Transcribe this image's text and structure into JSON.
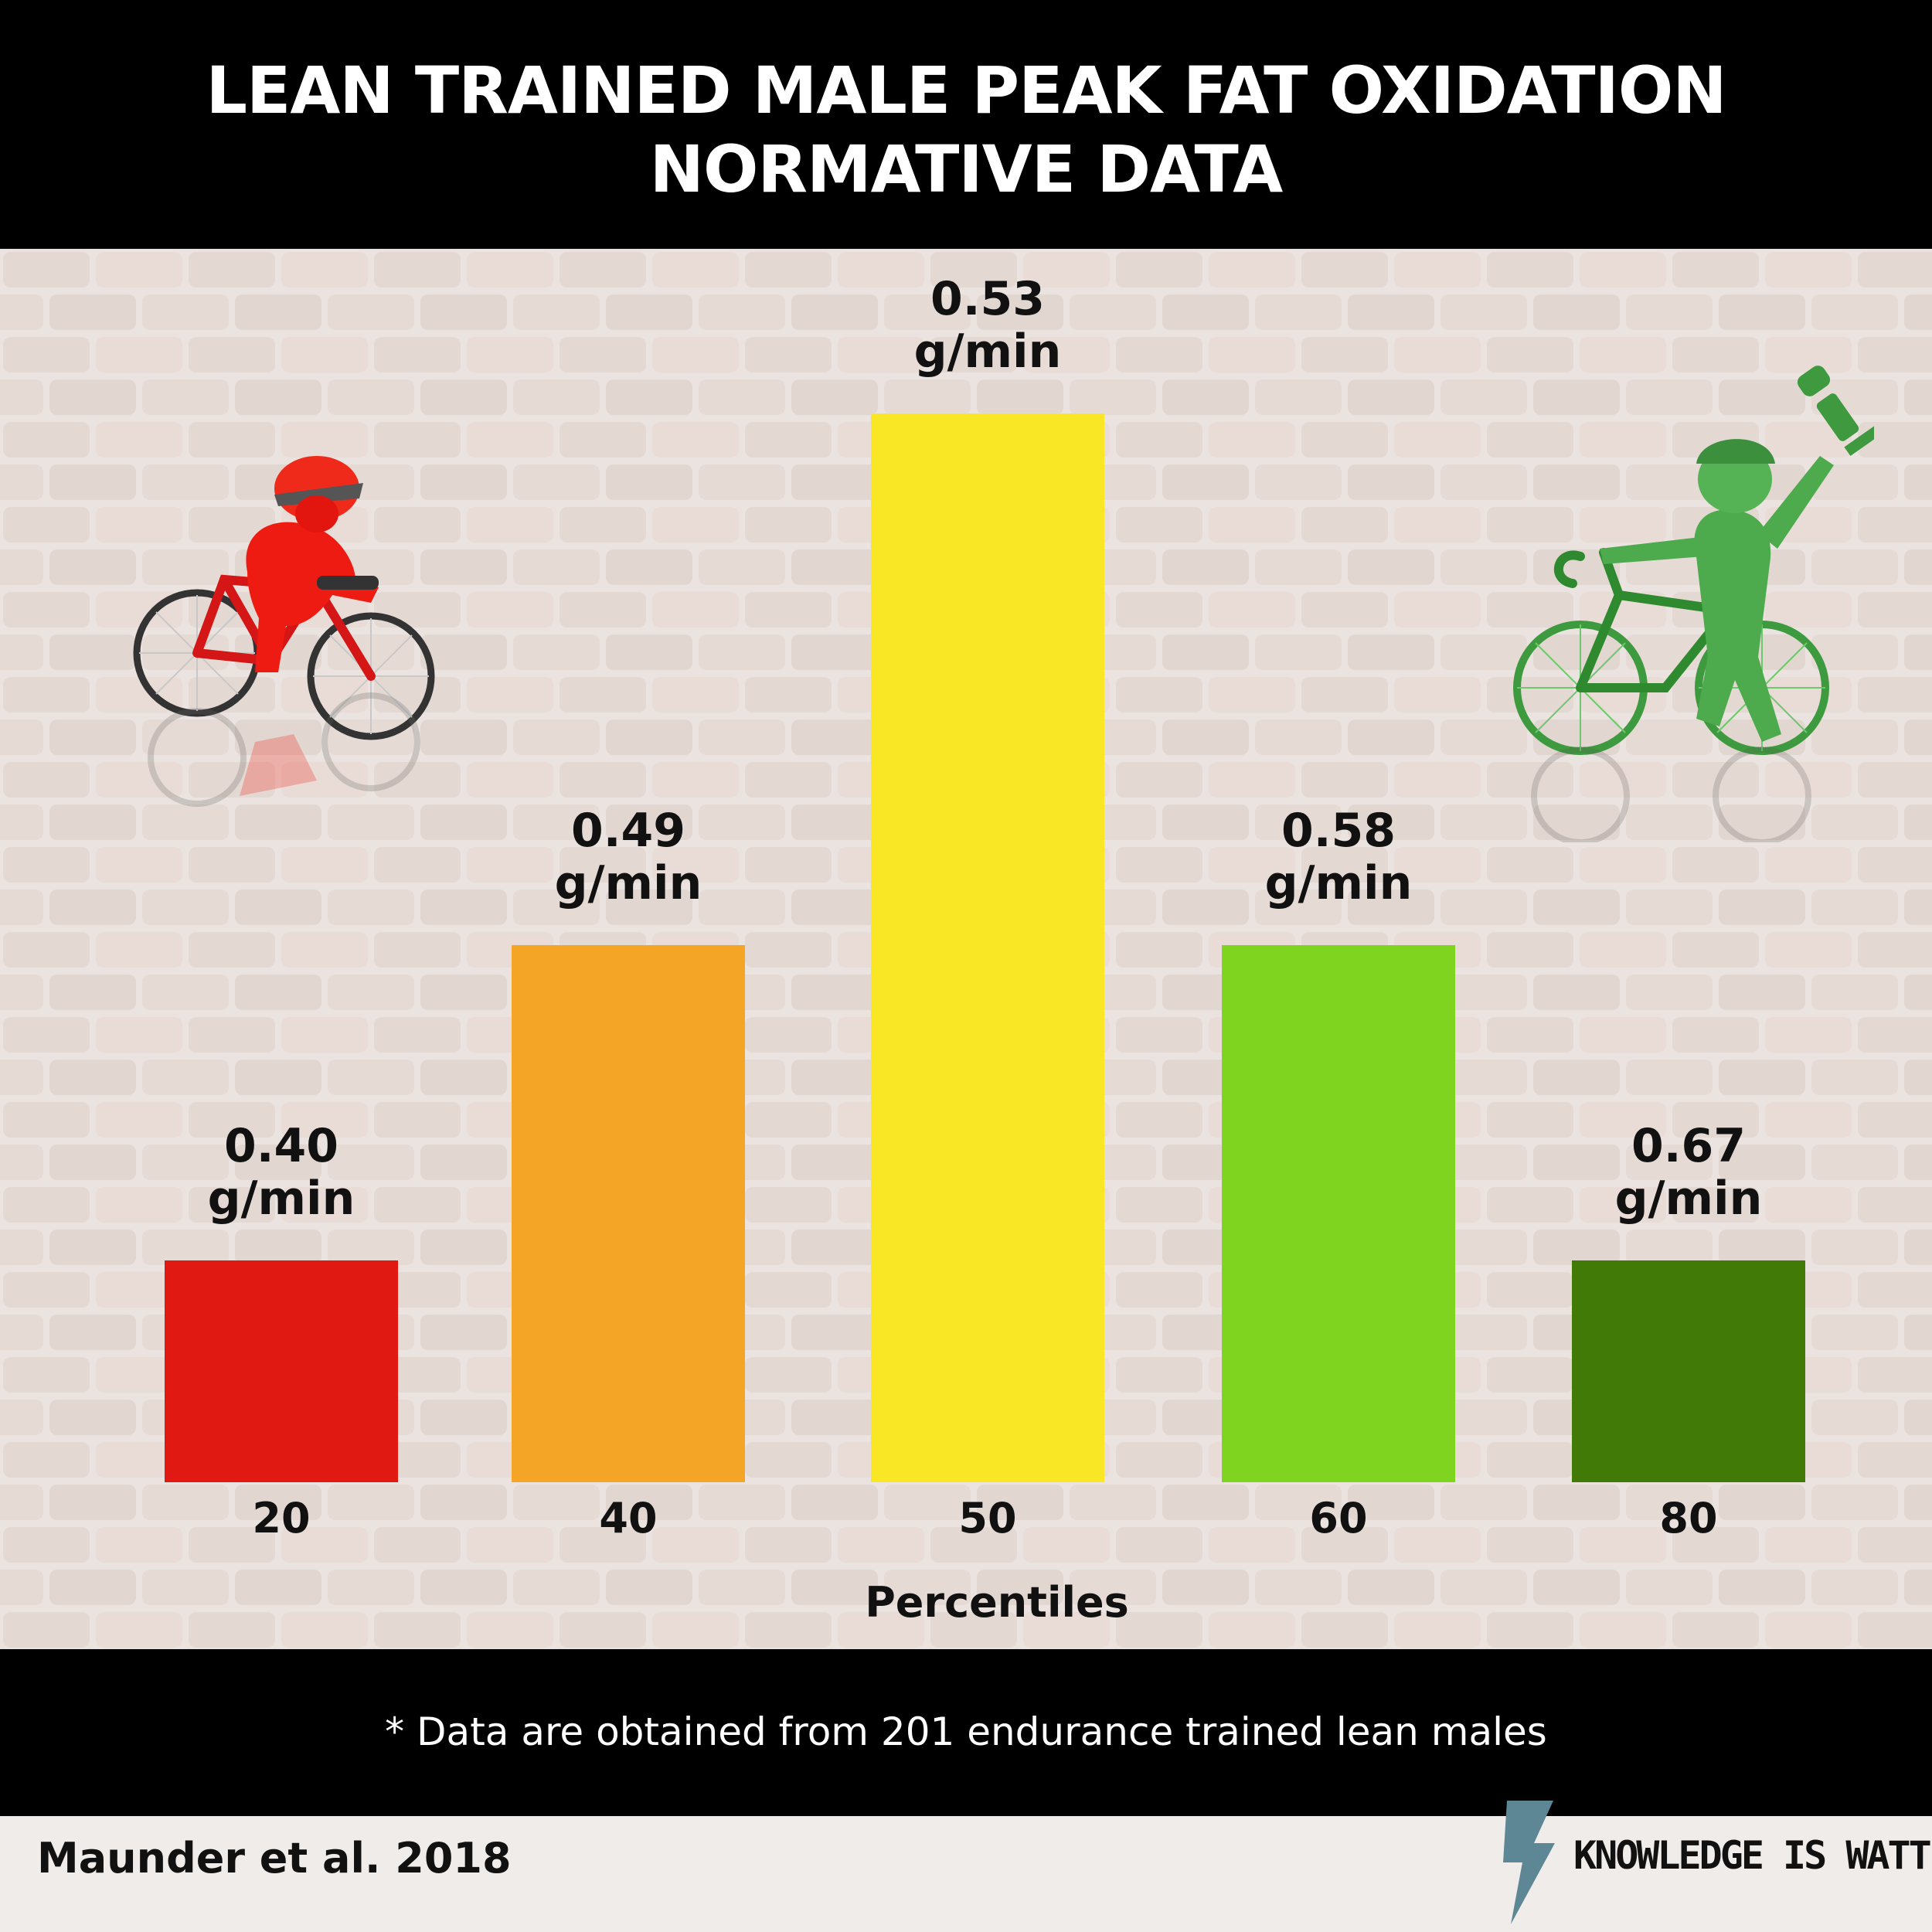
{
  "title_lines": [
    "LEAN TRAINED MALE PEAK FAT OXIDATION",
    "NORMATIVE DATA"
  ],
  "footnote": "* Data are obtained from 201 endurance trained lean males",
  "source": "Maunder et al. 2018",
  "brand": "KNOWLEDGE IS WATT",
  "icons": {
    "left": "red-cyclist-icon",
    "right": "green-cyclist-with-trophy-icon",
    "brand": "lightning-bolt-icon"
  },
  "colors": {
    "header_bg": "#000000",
    "background": "#ece4e0",
    "text": "#111111",
    "p20": "#e01a12",
    "p40": "#f4a526",
    "p50": "#f9e624",
    "p60": "#7fd420",
    "p80": "#427a08"
  },
  "chart_data": {
    "type": "bar",
    "title": "LEAN TRAINED MALE PEAK FAT OXIDATION NORMATIVE DATA",
    "xlabel": "Percentiles",
    "ylabel": "",
    "unit": "g/min",
    "categories": [
      "20",
      "40",
      "50",
      "60",
      "80"
    ],
    "values": [
      0.4,
      0.49,
      0.53,
      0.58,
      0.67
    ],
    "value_labels": [
      [
        "0.40",
        "g/min"
      ],
      [
        "0.49",
        "g/min"
      ],
      [
        "0.53",
        "g/min"
      ],
      [
        "0.58",
        "g/min"
      ],
      [
        "0.67",
        "g/min"
      ]
    ],
    "bar_colors": [
      "#e01a12",
      "#f4a526",
      "#f9e624",
      "#7fd420",
      "#427a08"
    ],
    "grid": false,
    "legend": "none"
  }
}
